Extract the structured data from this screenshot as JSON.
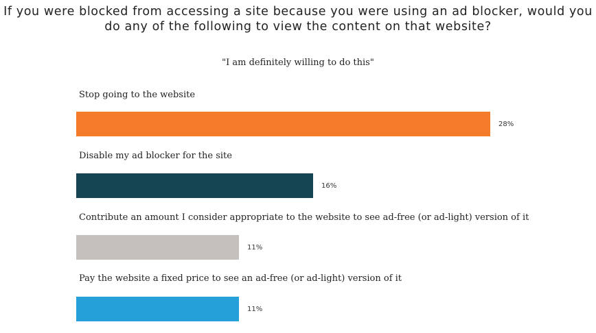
{
  "chart_data": {
    "type": "bar",
    "orientation": "horizontal",
    "title": "If you were blocked from accessing a site because you were using an ad blocker, would you do any of the following to view the content on that website?",
    "subtitle": "\"I am definitely willing to do this\"",
    "categories": [
      "Stop going to the website",
      "Disable my ad blocker for the site",
      "Contribute an amount I consider appropriate to the website to see ad-free (or ad-light) version of it",
      "Pay the website a fixed price to see an ad-free (or ad-light) version of it"
    ],
    "values": [
      28,
      16,
      11,
      11
    ],
    "value_labels": [
      "28%",
      "16%",
      "11%",
      "11%"
    ],
    "colors": [
      "#F47B2A",
      "#154552",
      "#C4C0BE",
      "#26A0D8"
    ],
    "xlim": [
      0,
      28
    ]
  }
}
